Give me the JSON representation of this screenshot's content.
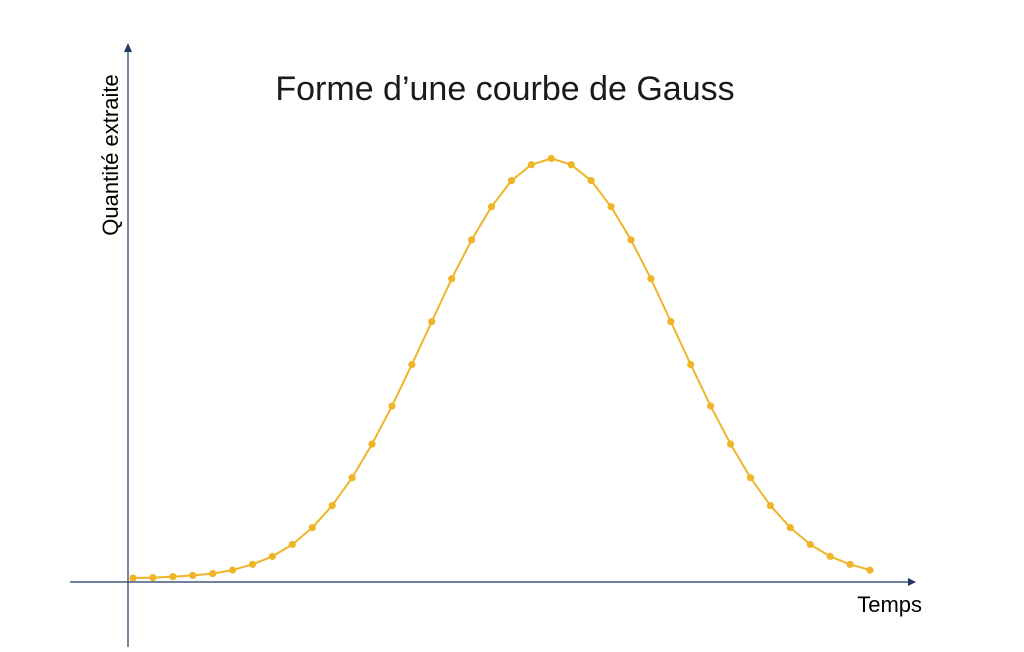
{
  "chart_data": {
    "type": "line",
    "title": "Forme d’une courbe de Gauss",
    "xlabel": "Temps",
    "ylabel": "Quantité extraite",
    "grid": false,
    "legend": "none",
    "series": [
      {
        "color": "#F0B429",
        "x": [
          0,
          1,
          2,
          3,
          4,
          5,
          6,
          7,
          8,
          9,
          10,
          11,
          12,
          13,
          14,
          15,
          16,
          17,
          18,
          19,
          20,
          21,
          22,
          23,
          24,
          25,
          26,
          27,
          28,
          29,
          30,
          31,
          32,
          33,
          34,
          35,
          36,
          37
        ],
        "values": [
          0.1,
          0.2,
          0.4,
          0.7,
          1.1,
          1.9,
          3.2,
          5.0,
          7.7,
          11.5,
          16.5,
          22.8,
          30.4,
          39.0,
          48.4,
          58.1,
          67.8,
          76.6,
          84.1,
          90.0,
          93.6,
          95.0,
          93.6,
          90.0,
          84.1,
          76.6,
          67.8,
          58.1,
          48.4,
          39.0,
          30.4,
          22.8,
          16.5,
          11.5,
          7.7,
          5.0,
          3.2,
          1.9
        ]
      }
    ]
  },
  "colors": {
    "axis": "#1F3864",
    "series": "#F0B429"
  }
}
